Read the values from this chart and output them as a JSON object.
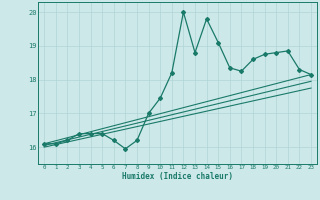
{
  "xlabel": "Humidex (Indice chaleur)",
  "x": [
    0,
    1,
    2,
    3,
    4,
    5,
    6,
    7,
    8,
    9,
    10,
    11,
    12,
    13,
    14,
    15,
    16,
    17,
    18,
    19,
    20,
    21,
    22,
    23
  ],
  "y": [
    16.1,
    16.1,
    16.2,
    16.4,
    16.4,
    16.4,
    16.2,
    15.95,
    16.2,
    17.0,
    17.45,
    18.2,
    20.0,
    18.8,
    19.8,
    19.1,
    18.35,
    18.25,
    18.6,
    18.75,
    18.8,
    18.85,
    18.3,
    18.15
  ],
  "line_color": "#1a7a6a",
  "bg_color": "#cde8e8",
  "grid_color": "#b0d5d5",
  "ylim": [
    15.5,
    20.3
  ],
  "yticks": [
    16,
    17,
    18,
    19,
    20
  ],
  "xticks": [
    0,
    1,
    2,
    3,
    4,
    5,
    6,
    7,
    8,
    9,
    10,
    11,
    12,
    13,
    14,
    15,
    16,
    17,
    18,
    19,
    20,
    21,
    22,
    23
  ],
  "trend1_start_x": 0,
  "trend1_start_y": 16.1,
  "trend1_end_x": 23,
  "trend1_end_y": 18.15,
  "trend2_start_x": 0,
  "trend2_start_y": 16.05,
  "trend2_end_x": 23,
  "trend2_end_y": 17.95,
  "trend3_start_x": 0,
  "trend3_start_y": 16.0,
  "trend3_end_x": 23,
  "trend3_end_y": 17.75
}
